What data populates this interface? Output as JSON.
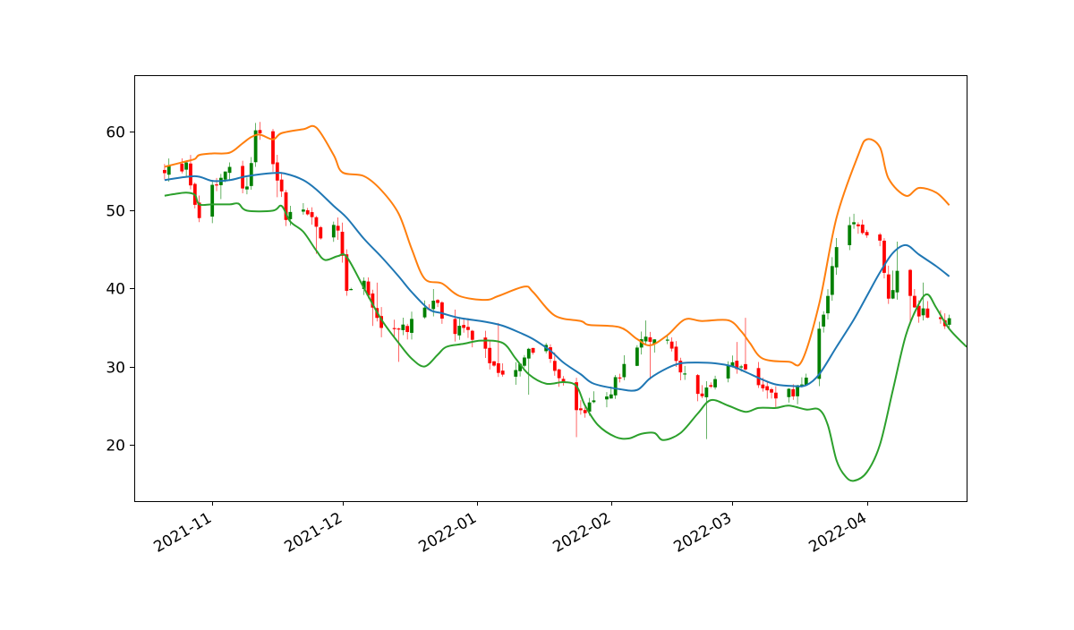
{
  "chart_data": {
    "type": "candlestick",
    "title": "",
    "xlabel": "",
    "ylabel": "",
    "x_range": [
      "2021-10-14",
      "2022-04-24"
    ],
    "ylim": [
      12.8,
      67.2
    ],
    "y_ticks": [
      20,
      30,
      40,
      50,
      60
    ],
    "x_ticks": [
      {
        "date": "2021-11-01",
        "label": "2021-11"
      },
      {
        "date": "2021-12-01",
        "label": "2021-12"
      },
      {
        "date": "2022-01-01",
        "label": "2022-01"
      },
      {
        "date": "2022-02-01",
        "label": "2022-02"
      },
      {
        "date": "2022-03-01",
        "label": "2022-03"
      },
      {
        "date": "2022-04-01",
        "label": "2022-04"
      }
    ],
    "grid": false,
    "legend": "none",
    "colors": {
      "up": "#008000",
      "down": "#ff0000",
      "upper_band": "#ff7f0e",
      "middle_band": "#1f77b4",
      "lower_band": "#2ca02c"
    },
    "band_keypoints": {
      "upper": [
        [
          "2021-10-21",
          55.5
        ],
        [
          "2021-10-26",
          56.2
        ],
        [
          "2021-10-28",
          56.5
        ],
        [
          "2021-10-29",
          57.0
        ],
        [
          "2021-11-01",
          57.2
        ],
        [
          "2021-11-05",
          57.3
        ],
        [
          "2021-11-08",
          58.5
        ],
        [
          "2021-11-10",
          59.3
        ],
        [
          "2021-11-12",
          59.6
        ],
        [
          "2021-11-15",
          59.0
        ],
        [
          "2021-11-17",
          59.8
        ],
        [
          "2021-11-22",
          60.3
        ],
        [
          "2021-11-25",
          60.5
        ],
        [
          "2021-11-29",
          57.0
        ],
        [
          "2021-12-01",
          54.8
        ],
        [
          "2021-12-06",
          54.3
        ],
        [
          "2021-12-10",
          52.5
        ],
        [
          "2021-12-14",
          49.5
        ],
        [
          "2021-12-17",
          45.0
        ],
        [
          "2021-12-20",
          41.2
        ],
        [
          "2021-12-24",
          40.6
        ],
        [
          "2021-12-28",
          39.0
        ],
        [
          "2022-01-03",
          38.5
        ],
        [
          "2022-01-06",
          39.0
        ],
        [
          "2022-01-12",
          40.2
        ],
        [
          "2022-01-14",
          39.5
        ],
        [
          "2022-01-19",
          36.5
        ],
        [
          "2022-01-25",
          35.8
        ],
        [
          "2022-01-27",
          35.3
        ],
        [
          "2022-02-03",
          35.0
        ],
        [
          "2022-02-07",
          33.5
        ],
        [
          "2022-02-10",
          32.7
        ],
        [
          "2022-02-14",
          34.0
        ],
        [
          "2022-02-18",
          36.0
        ],
        [
          "2022-02-22",
          35.8
        ],
        [
          "2022-02-28",
          35.9
        ],
        [
          "2022-03-03",
          34.5
        ],
        [
          "2022-03-05",
          33.0
        ],
        [
          "2022-03-08",
          31.0
        ],
        [
          "2022-03-14",
          30.6
        ],
        [
          "2022-03-17",
          30.7
        ],
        [
          "2022-03-21",
          38.0
        ],
        [
          "2022-03-25",
          49.0
        ],
        [
          "2022-03-30",
          57.0
        ],
        [
          "2022-04-01",
          59.0
        ],
        [
          "2022-04-04",
          58.0
        ],
        [
          "2022-04-06",
          54.0
        ],
        [
          "2022-04-10",
          51.8
        ],
        [
          "2022-04-13",
          52.8
        ],
        [
          "2022-04-17",
          52.2
        ],
        [
          "2022-04-20",
          50.6
        ]
      ],
      "middle": [
        [
          "2021-10-21",
          53.8
        ],
        [
          "2021-10-28",
          54.3
        ],
        [
          "2021-11-01",
          53.7
        ],
        [
          "2021-11-05",
          53.8
        ],
        [
          "2021-11-09",
          54.3
        ],
        [
          "2021-11-15",
          54.7
        ],
        [
          "2021-11-18",
          54.6
        ],
        [
          "2021-11-22",
          53.8
        ],
        [
          "2021-11-25",
          52.6
        ],
        [
          "2021-11-29",
          50.5
        ],
        [
          "2021-12-02",
          49.0
        ],
        [
          "2021-12-06",
          46.3
        ],
        [
          "2021-12-10",
          44.0
        ],
        [
          "2021-12-14",
          41.5
        ],
        [
          "2021-12-17",
          39.5
        ],
        [
          "2021-12-21",
          37.3
        ],
        [
          "2021-12-24",
          36.8
        ],
        [
          "2021-12-28",
          36.2
        ],
        [
          "2022-01-03",
          35.7
        ],
        [
          "2022-01-07",
          35.2
        ],
        [
          "2022-01-11",
          34.3
        ],
        [
          "2022-01-14",
          33.5
        ],
        [
          "2022-01-18",
          32.0
        ],
        [
          "2022-01-21",
          30.5
        ],
        [
          "2022-01-25",
          29.0
        ],
        [
          "2022-01-28",
          27.8
        ],
        [
          "2022-02-03",
          27.1
        ],
        [
          "2022-02-07",
          27.0
        ],
        [
          "2022-02-10",
          28.5
        ],
        [
          "2022-02-14",
          29.8
        ],
        [
          "2022-02-17",
          30.4
        ],
        [
          "2022-02-21",
          30.5
        ],
        [
          "2022-02-25",
          30.4
        ],
        [
          "2022-03-01",
          30.0
        ],
        [
          "2022-03-04",
          29.3
        ],
        [
          "2022-03-08",
          28.3
        ],
        [
          "2022-03-11",
          27.7
        ],
        [
          "2022-03-15",
          27.5
        ],
        [
          "2022-03-18",
          27.6
        ],
        [
          "2022-03-21",
          29.0
        ],
        [
          "2022-03-25",
          32.5
        ],
        [
          "2022-03-29",
          36.0
        ],
        [
          "2022-04-01",
          39.0
        ],
        [
          "2022-04-04",
          42.0
        ],
        [
          "2022-04-07",
          44.5
        ],
        [
          "2022-04-10",
          45.5
        ],
        [
          "2022-04-13",
          44.3
        ],
        [
          "2022-04-17",
          42.8
        ],
        [
          "2022-04-20",
          41.5
        ]
      ],
      "lower": [
        [
          "2021-10-21",
          51.8
        ],
        [
          "2021-10-23",
          52.0
        ],
        [
          "2021-10-26",
          52.2
        ],
        [
          "2021-10-28",
          51.9
        ],
        [
          "2021-10-29",
          50.7
        ],
        [
          "2021-11-01",
          50.7
        ],
        [
          "2021-11-05",
          50.7
        ],
        [
          "2021-11-07",
          50.8
        ],
        [
          "2021-11-09",
          49.9
        ],
        [
          "2021-11-15",
          49.9
        ],
        [
          "2021-11-17",
          50.5
        ],
        [
          "2021-11-19",
          48.5
        ],
        [
          "2021-11-22",
          47.2
        ],
        [
          "2021-11-25",
          44.8
        ],
        [
          "2021-11-27",
          43.6
        ],
        [
          "2021-11-30",
          44.1
        ],
        [
          "2021-12-02",
          44.0
        ],
        [
          "2021-12-06",
          40.0
        ],
        [
          "2021-12-10",
          36.0
        ],
        [
          "2021-12-14",
          33.0
        ],
        [
          "2021-12-17",
          31.0
        ],
        [
          "2021-12-20",
          30.0
        ],
        [
          "2021-12-23",
          31.5
        ],
        [
          "2021-12-25",
          32.5
        ],
        [
          "2021-12-29",
          32.9
        ],
        [
          "2022-01-02",
          33.3
        ],
        [
          "2022-01-07",
          33.0
        ],
        [
          "2022-01-10",
          31.0
        ],
        [
          "2022-01-13",
          29.0
        ],
        [
          "2022-01-17",
          27.8
        ],
        [
          "2022-01-21",
          28.0
        ],
        [
          "2022-01-24",
          27.5
        ],
        [
          "2022-01-26",
          25.0
        ],
        [
          "2022-01-29",
          22.5
        ],
        [
          "2022-02-02",
          21.0
        ],
        [
          "2022-02-05",
          20.8
        ],
        [
          "2022-02-08",
          21.4
        ],
        [
          "2022-02-11",
          21.5
        ],
        [
          "2022-02-13",
          20.6
        ],
        [
          "2022-02-17",
          21.5
        ],
        [
          "2022-02-21",
          24.0
        ],
        [
          "2022-02-24",
          25.7
        ],
        [
          "2022-02-28",
          25.0
        ],
        [
          "2022-03-04",
          24.2
        ],
        [
          "2022-03-07",
          24.7
        ],
        [
          "2022-03-11",
          24.7
        ],
        [
          "2022-03-14",
          25.0
        ],
        [
          "2022-03-18",
          24.5
        ],
        [
          "2022-03-21",
          24.5
        ],
        [
          "2022-03-23",
          22.5
        ],
        [
          "2022-03-25",
          18.0
        ],
        [
          "2022-03-27",
          16.0
        ],
        [
          "2022-03-29",
          15.4
        ],
        [
          "2022-04-01",
          16.5
        ],
        [
          "2022-04-04",
          20.0
        ],
        [
          "2022-04-07",
          27.0
        ],
        [
          "2022-04-10",
          34.0
        ],
        [
          "2022-04-13",
          38.0
        ],
        [
          "2022-04-15",
          39.2
        ],
        [
          "2022-04-17",
          37.5
        ],
        [
          "2022-04-20",
          34.8
        ],
        [
          "2022-04-24",
          32.5
        ]
      ]
    },
    "ohlc_waypoints": [
      [
        "2021-10-21",
        55.0
      ],
      [
        "2021-10-26",
        55.5
      ],
      [
        "2021-10-29",
        49.0
      ],
      [
        "2021-11-01",
        53.5
      ],
      [
        "2021-11-05",
        55.0
      ],
      [
        "2021-11-09",
        53.0
      ],
      [
        "2021-11-11",
        60.5
      ],
      [
        "2021-11-15",
        56.5
      ],
      [
        "2021-11-18",
        49.5
      ],
      [
        "2021-11-22",
        50.5
      ],
      [
        "2021-11-26",
        47.0
      ],
      [
        "2021-11-30",
        48.0
      ],
      [
        "2021-12-02",
        40.0
      ],
      [
        "2021-12-06",
        41.0
      ],
      [
        "2021-12-09",
        35.5
      ],
      [
        "2021-12-13",
        34.5
      ],
      [
        "2021-12-16",
        35.0
      ],
      [
        "2021-12-21",
        37.5
      ],
      [
        "2021-12-23",
        38.0
      ],
      [
        "2021-12-25",
        34.8
      ],
      [
        "2021-12-30",
        35.0
      ],
      [
        "2022-01-04",
        31.0
      ],
      [
        "2022-01-07",
        28.5
      ],
      [
        "2022-01-12",
        31.5
      ],
      [
        "2022-01-17",
        32.5
      ],
      [
        "2022-01-20",
        29.0
      ],
      [
        "2022-01-22",
        25.5
      ],
      [
        "2022-01-25",
        24.0
      ],
      [
        "2022-01-28",
        25.0
      ],
      [
        "2022-02-01",
        27.0
      ],
      [
        "2022-02-04",
        30.0
      ],
      [
        "2022-02-08",
        33.0
      ],
      [
        "2022-02-13",
        33.5
      ],
      [
        "2022-02-16",
        31.0
      ],
      [
        "2022-02-21",
        26.0
      ],
      [
        "2022-02-24",
        27.0
      ],
      [
        "2022-02-28",
        30.0
      ],
      [
        "2022-03-03",
        29.5
      ],
      [
        "2022-03-07",
        27.0
      ],
      [
        "2022-03-11",
        26.5
      ],
      [
        "2022-03-17",
        27.0
      ],
      [
        "2022-03-22",
        36.0
      ],
      [
        "2022-03-25",
        46.0
      ],
      [
        "2022-03-29",
        48.0
      ],
      [
        "2022-04-01",
        47.5
      ],
      [
        "2022-04-04",
        46.0
      ],
      [
        "2022-04-06",
        38.5
      ],
      [
        "2022-04-08",
        42.5
      ],
      [
        "2022-04-12",
        37.0
      ],
      [
        "2022-04-17",
        36.5
      ],
      [
        "2022-04-20",
        35.5
      ]
    ]
  }
}
